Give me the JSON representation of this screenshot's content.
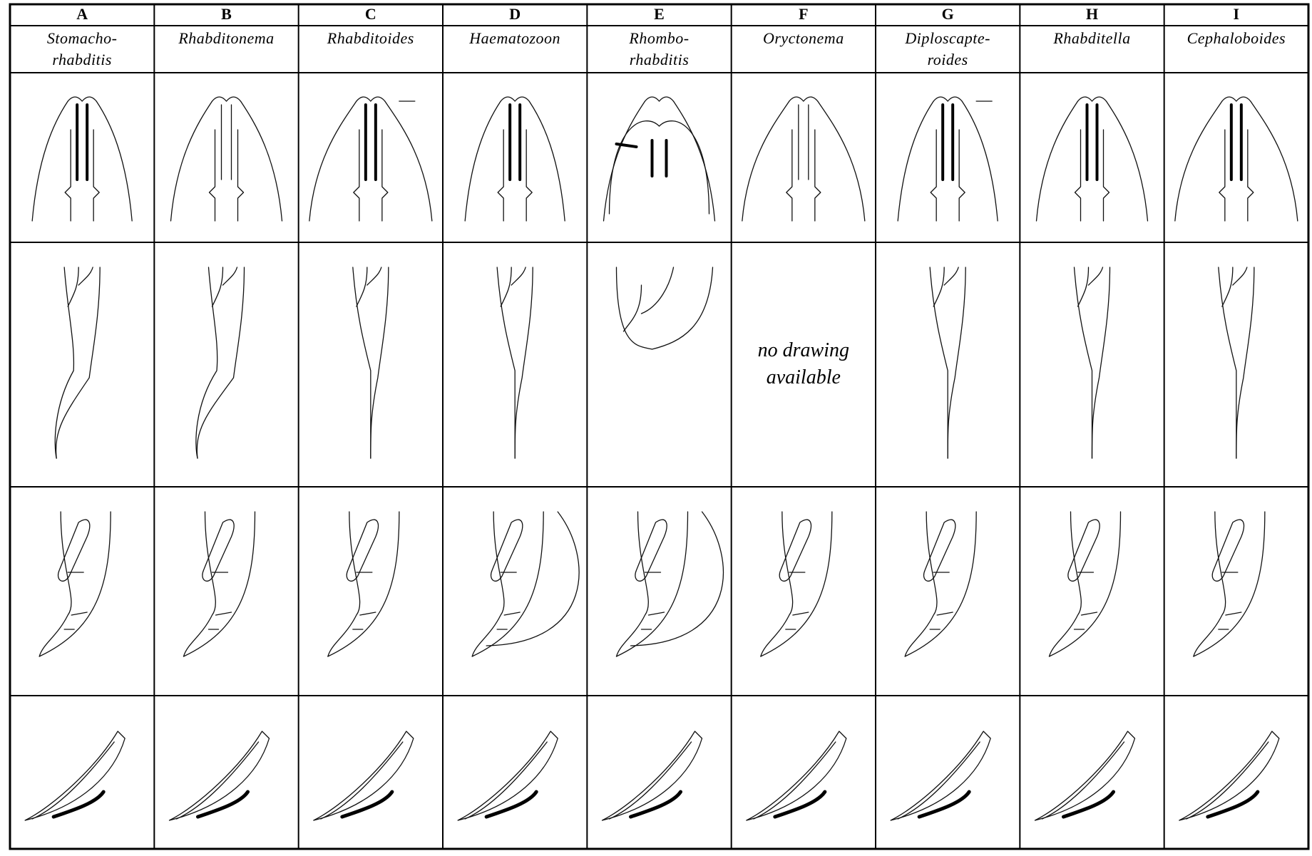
{
  "columns": [
    {
      "letter": "A",
      "name": [
        "Stomacho-",
        "rhabditis"
      ]
    },
    {
      "letter": "B",
      "name": [
        "Rhabditonema"
      ]
    },
    {
      "letter": "C",
      "name": [
        "Rhabditoides"
      ]
    },
    {
      "letter": "D",
      "name": [
        "Haematozoon"
      ]
    },
    {
      "letter": "E",
      "name": [
        "Rhombo-",
        "rhabditis"
      ]
    },
    {
      "letter": "F",
      "name": [
        "Oryctonema"
      ],
      "tail_note": [
        "no drawing",
        "available"
      ]
    },
    {
      "letter": "G",
      "name": [
        "Diploscapte-",
        "roides"
      ]
    },
    {
      "letter": "H",
      "name": [
        "Rhabditella"
      ]
    },
    {
      "letter": "I",
      "name": [
        "Cephaloboides"
      ]
    }
  ]
}
